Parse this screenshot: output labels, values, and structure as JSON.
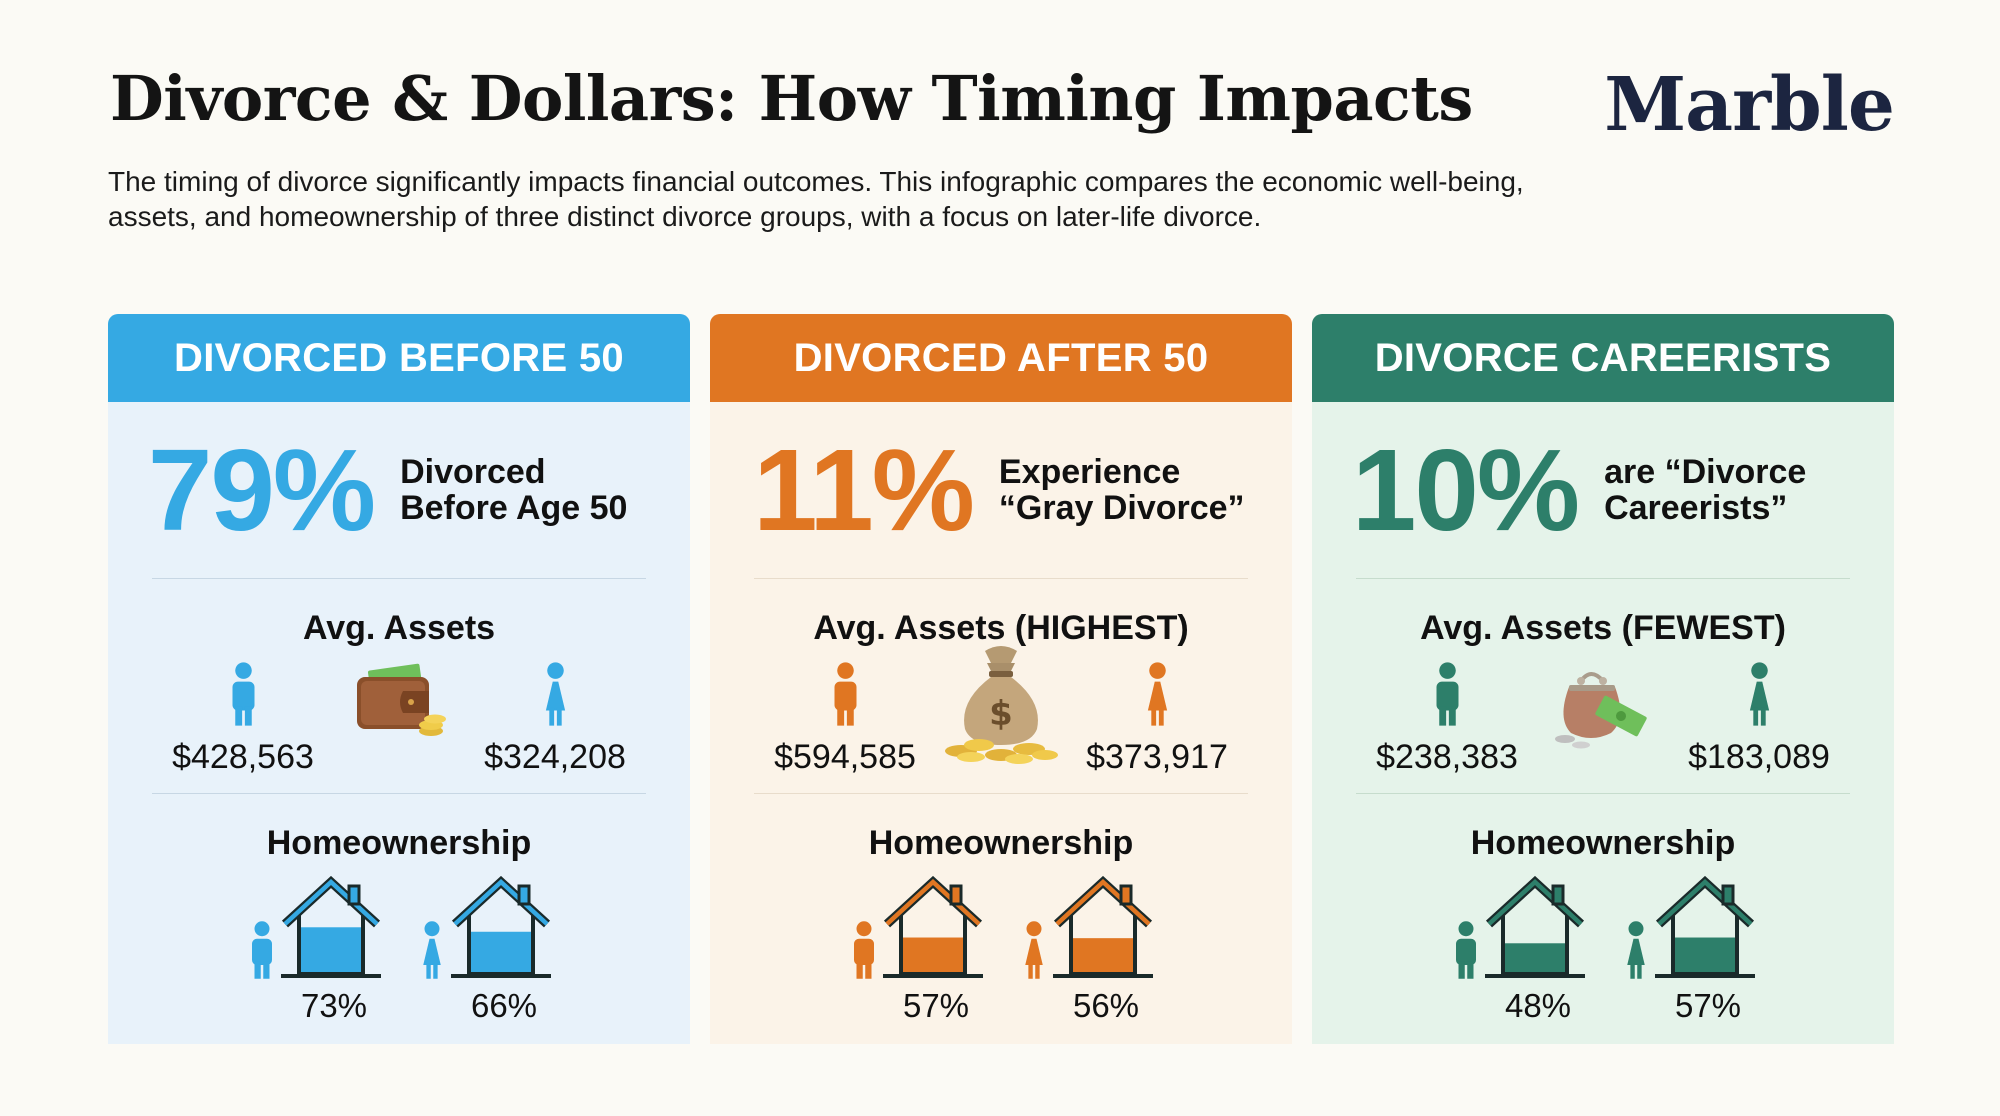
{
  "header": {
    "title": "Divorce & Dollars: How Timing Impacts",
    "brand": "Marble",
    "subtitle": "The timing of divorce significantly impacts financial outcomes. This infographic compares the economic well-being, assets, and homeownership of three distinct divorce groups, with a focus on later-life divorce."
  },
  "cards": [
    {
      "header": "DIVORCED BEFORE 50",
      "percent": "79%",
      "stat_label_line1": "Divorced",
      "stat_label_line2": "Before Age 50",
      "assets_title": "Avg. Assets",
      "assets_male": "$428,563",
      "assets_female": "$324,208",
      "money_icon": "wallet-icon",
      "home_title": "Homeownership",
      "home_male": "73%",
      "home_female": "66%",
      "home_male_fill": 0.73,
      "home_female_fill": 0.66,
      "colors": {
        "accent": "#35a9e3",
        "bg": "#e8f2fa",
        "divider": "#c7d7e4"
      }
    },
    {
      "header": "DIVORCED AFTER 50",
      "percent": "11%",
      "stat_label_line1": "Experience",
      "stat_label_line2": "“Gray Divorce”",
      "assets_title": "Avg. Assets (HIGHEST)",
      "assets_male": "$594,585",
      "assets_female": "$373,917",
      "money_icon": "money-bag-icon",
      "home_title": "Homeownership",
      "home_male": "57%",
      "home_female": "56%",
      "home_male_fill": 0.57,
      "home_female_fill": 0.56,
      "colors": {
        "accent": "#e07622",
        "bg": "#fbf3e8",
        "divider": "#e8dccb"
      }
    },
    {
      "header": "DIVORCE CAREERISTS",
      "percent": "10%",
      "stat_label_line1": "are “Divorce",
      "stat_label_line2": "Careerists”",
      "assets_title": "Avg. Assets (FEWEST)",
      "assets_male": "$238,383",
      "assets_female": "$183,089",
      "money_icon": "coin-purse-icon",
      "home_title": "Homeownership",
      "home_male": "48%",
      "home_female": "57%",
      "home_male_fill": 0.48,
      "home_female_fill": 0.57,
      "colors": {
        "accent": "#2d7f6a",
        "bg": "#e5f3ea",
        "divider": "#c6dccd"
      }
    }
  ]
}
